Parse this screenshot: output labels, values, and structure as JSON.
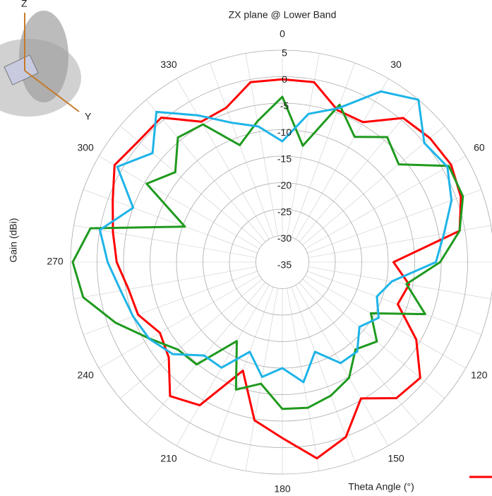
{
  "chart_data": {
    "type": "polar",
    "title": "ZX plane @ Lower Band",
    "y_label": "Gain (dBi)",
    "x_label": "Theta Angle (°)",
    "annotations": [
      "Z",
      "Y"
    ],
    "theta": [
      0,
      10,
      20,
      30,
      40,
      50,
      60,
      70,
      80,
      90,
      100,
      110,
      120,
      130,
      140,
      150,
      160,
      170,
      180,
      190,
      200,
      210,
      220,
      230,
      240,
      250,
      260,
      270,
      280,
      290,
      300,
      310,
      320,
      330,
      340,
      350
    ],
    "thetaticks": [
      0,
      30,
      60,
      120,
      150,
      180,
      210,
      240,
      270,
      300,
      330
    ],
    "rlim": [
      -35,
      5
    ],
    "rticks": [
      -35,
      -30,
      -25,
      -20,
      -15,
      -10,
      -5,
      0,
      5
    ],
    "series": [
      {
        "color": "#ff0000",
        "values": [
          -0.5,
          -0.5,
          -4.5,
          -4.5,
          0.5,
          1.4,
          1.8,
          0.9,
          -1,
          -14,
          -10.7,
          -11.8,
          -5.8,
          -1,
          -1.5,
          -5.3,
          0.1,
          2.6,
          -1.8,
          -4.7,
          -13.2,
          -3.8,
          -2,
          -7,
          -8.3,
          -6,
          -5.5,
          -3.7,
          -2.5,
          -0.9,
          1.6,
          0.5,
          0.6,
          -4.4,
          -4,
          -0.5
        ]
      },
      {
        "color": "#1f9a1f",
        "values": [
          -3.8,
          -12.7,
          -3.4,
          -7.7,
          -4.2,
          -6.3,
          1.3,
          1.3,
          -1,
          -5.2,
          -11.2,
          -6.3,
          -15.7,
          -11.7,
          -13.5,
          -9.8,
          -8.2,
          -7.1,
          -7.3,
          -11.7,
          -9.4,
          -17.8,
          -9.8,
          -9.3,
          -6.1,
          -1.5,
          3.2,
          4.6,
          1.8,
          -15.4,
          -5.4,
          -8.6,
          -4.3,
          -5,
          -11.5,
          -8
        ]
      },
      {
        "color": "#1eb4e8",
        "values": [
          -12.2,
          -6.6,
          -4.1,
          2.2,
          5,
          0,
          1,
          -1,
          -4,
          -6,
          -14,
          -16,
          -14,
          -16,
          -13,
          -13,
          -17,
          -12,
          -15,
          -13,
          -17,
          -12,
          -12,
          -8,
          -6,
          -5,
          -4,
          -2,
          0,
          -5,
          1,
          -3,
          2,
          -3,
          -7,
          -9
        ]
      }
    ]
  }
}
